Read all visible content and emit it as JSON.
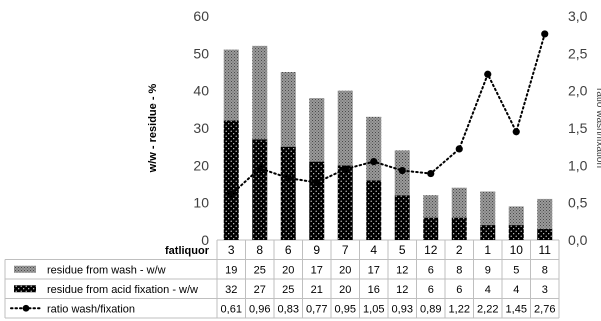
{
  "chart_data": {
    "type": "bar",
    "subtype": "stacked bar with line on secondary axis",
    "category_title": "fatliquor",
    "categories": [
      "3",
      "8",
      "6",
      "9",
      "7",
      "4",
      "5",
      "12",
      "2",
      "1",
      "10",
      "11"
    ],
    "ylabel": "w/w - residue - %",
    "ylabel_right": "ratio wash/fixation",
    "ylim": [
      0,
      60
    ],
    "yticks": [
      "0",
      "10",
      "20",
      "30",
      "40",
      "50",
      "60"
    ],
    "ylim_right": [
      0,
      3.0
    ],
    "yticks_right": [
      "0,0",
      "0,5",
      "1,0",
      "1,5",
      "2,0",
      "2,5",
      "3,0"
    ],
    "grid": false,
    "series": [
      {
        "name": "residue from  wash - w/w",
        "kind": "bar",
        "stack_position": "top",
        "color": "#808080",
        "pattern": "fine grey dots",
        "values": [
          19,
          25,
          20,
          17,
          20,
          17,
          12,
          6,
          8,
          9,
          5,
          8
        ]
      },
      {
        "name": "residue from acid fixation - w/w",
        "kind": "bar",
        "stack_position": "bottom",
        "color": "#000000",
        "pattern": "black with white dots",
        "values": [
          32,
          27,
          25,
          21,
          20,
          16,
          12,
          6,
          6,
          4,
          4,
          3
        ]
      },
      {
        "name": "ratio wash/fixation",
        "kind": "line",
        "axis": "right",
        "style": "dotted with round markers",
        "color": "#000000",
        "values": [
          0.61,
          0.96,
          0.83,
          0.77,
          0.95,
          1.05,
          0.93,
          0.89,
          1.22,
          2.22,
          1.45,
          2.76
        ],
        "labels": [
          "0,61",
          "0,96",
          "0,83",
          "0,77",
          "0,95",
          "1,05",
          "0,93",
          "0,89",
          "1,22",
          "2,22",
          "1,45",
          "2,76"
        ]
      }
    ],
    "data_table": true
  }
}
